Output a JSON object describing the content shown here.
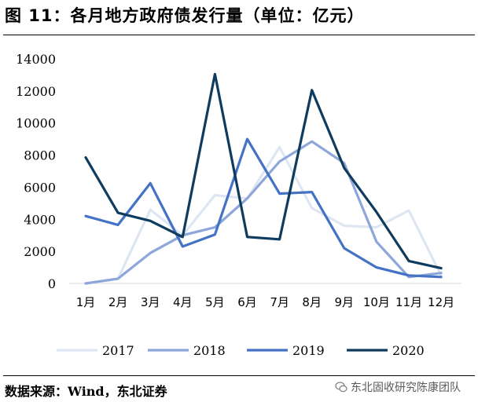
{
  "title": "图 11：各月地方政府债发行量（单位：亿元）",
  "source": "数据来源：Wind，东北证券",
  "watermark": "东北固收研究陈康团队",
  "chart_data": {
    "type": "line",
    "title": "",
    "xlabel": "",
    "ylabel": "",
    "ylim": [
      0,
      14000
    ],
    "y_ticks": [
      0,
      2000,
      4000,
      6000,
      8000,
      10000,
      12000,
      14000
    ],
    "y_tick_labels": [
      "0",
      "2000",
      "4000",
      "6000",
      "8000",
      "10000",
      "12000",
      "14000"
    ],
    "categories": [
      "1月",
      "2月",
      "3月",
      "4月",
      "5月",
      "6月",
      "7月",
      "8月",
      "9月",
      "10月",
      "11月",
      "12月"
    ],
    "grid": false,
    "legend": "bottom",
    "series": [
      {
        "name": "2017",
        "color": "#dfe6f3",
        "values": [
          0,
          300,
          4600,
          3000,
          5500,
          5300,
          8500,
          4700,
          3600,
          3500,
          4550,
          500
        ]
      },
      {
        "name": "2018",
        "color": "#8ea6d9",
        "values": [
          0,
          300,
          1900,
          3000,
          3500,
          5300,
          7600,
          8850,
          7500,
          2600,
          400,
          650
        ]
      },
      {
        "name": "2019",
        "color": "#4472c4",
        "values": [
          4200,
          3650,
          6250,
          2300,
          3050,
          9000,
          5600,
          5700,
          2200,
          1000,
          500,
          400
        ]
      },
      {
        "name": "2020",
        "color": "#0e3b5e",
        "values": [
          7850,
          4400,
          3900,
          2900,
          13050,
          2900,
          2750,
          12050,
          7200,
          4450,
          1400,
          950
        ]
      }
    ]
  }
}
